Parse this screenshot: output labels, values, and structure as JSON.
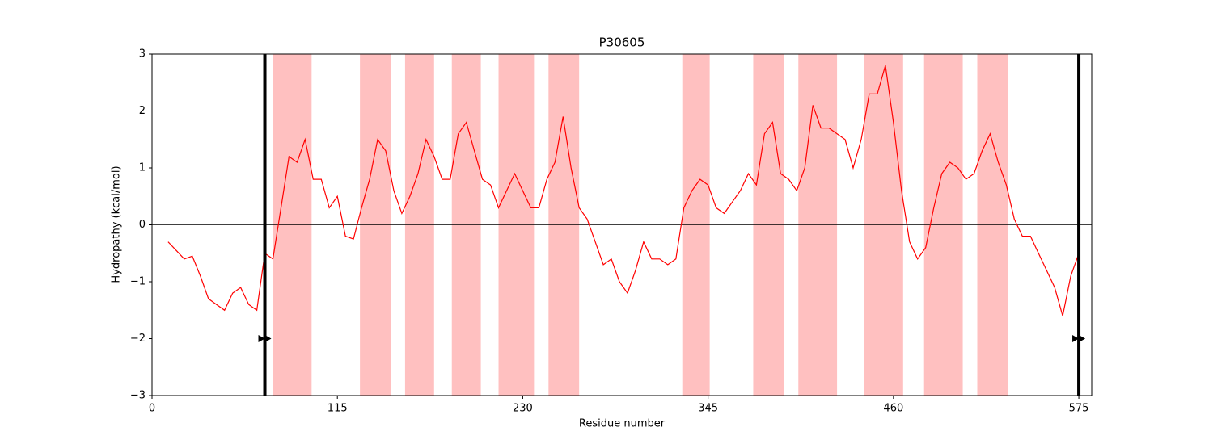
{
  "chart_data": {
    "type": "line",
    "title": "P30605",
    "xlabel": "Residue number",
    "ylabel": "Hydropathy (kcal/mol)",
    "xlim": [
      0,
      583
    ],
    "ylim": [
      -3,
      3
    ],
    "xticks": [
      0,
      115,
      230,
      345,
      460,
      575
    ],
    "yticks": [
      {
        "value": -3,
        "label": "−3"
      },
      {
        "value": -2,
        "label": "−2"
      },
      {
        "value": -1,
        "label": "−1"
      },
      0,
      1,
      2,
      3
    ],
    "hline": 0,
    "spans": [
      [
        75,
        99
      ],
      [
        129,
        148
      ],
      [
        157,
        175
      ],
      [
        186,
        204
      ],
      [
        215,
        237
      ],
      [
        246,
        265
      ],
      [
        329,
        346
      ],
      [
        373,
        392
      ],
      [
        401,
        425
      ],
      [
        442,
        466
      ],
      [
        479,
        503
      ],
      [
        512,
        531
      ]
    ],
    "span_color": "#ffc0c0",
    "vlines": [
      70,
      575
    ],
    "arrows": [
      {
        "x": 70,
        "y": -2
      },
      {
        "x": 575,
        "y": -2
      }
    ],
    "series": [
      {
        "color": "#ff0000",
        "x": [
          10,
          15,
          20,
          25,
          30,
          35,
          40,
          45,
          50,
          55,
          60,
          65,
          70,
          75,
          80,
          85,
          90,
          95,
          100,
          105,
          110,
          115,
          120,
          125,
          130,
          135,
          140,
          145,
          150,
          155,
          160,
          165,
          170,
          175,
          180,
          185,
          190,
          195,
          200,
          205,
          210,
          215,
          220,
          225,
          230,
          235,
          240,
          245,
          250,
          255,
          260,
          265,
          270,
          275,
          280,
          285,
          290,
          295,
          300,
          305,
          310,
          315,
          320,
          325,
          330,
          335,
          340,
          345,
          350,
          355,
          360,
          365,
          370,
          375,
          380,
          385,
          390,
          395,
          400,
          405,
          410,
          415,
          420,
          425,
          430,
          435,
          440,
          445,
          450,
          455,
          460,
          465,
          470,
          475,
          480,
          485,
          490,
          495,
          500,
          505,
          510,
          515,
          520,
          525,
          530,
          535,
          540,
          545,
          550,
          555,
          560,
          565,
          570,
          575
        ],
        "values": [
          -0.3,
          -0.45,
          -0.6,
          -0.55,
          -0.9,
          -1.3,
          -1.4,
          -1.5,
          -1.2,
          -1.1,
          -1.4,
          -1.5,
          -0.5,
          -0.6,
          0.3,
          1.2,
          1.1,
          1.5,
          0.8,
          0.8,
          0.3,
          0.5,
          -0.2,
          -0.25,
          0.3,
          0.8,
          1.5,
          1.3,
          0.6,
          0.2,
          0.5,
          0.9,
          1.5,
          1.2,
          0.8,
          0.8,
          1.6,
          1.8,
          1.3,
          0.8,
          0.7,
          0.3,
          0.6,
          0.9,
          0.6,
          0.3,
          0.3,
          0.8,
          1.1,
          1.9,
          1.0,
          0.3,
          0.1,
          -0.3,
          -0.7,
          -0.6,
          -1.0,
          -1.2,
          -0.8,
          -0.3,
          -0.6,
          -0.6,
          -0.7,
          -0.6,
          0.3,
          0.6,
          0.8,
          0.7,
          0.3,
          0.2,
          0.4,
          0.6,
          0.9,
          0.7,
          1.6,
          1.8,
          0.9,
          0.8,
          0.6,
          1.0,
          2.1,
          1.7,
          1.7,
          1.6,
          1.5,
          1.0,
          1.5,
          2.3,
          2.3,
          2.8,
          1.8,
          0.6,
          -0.3,
          -0.6,
          -0.4,
          0.3,
          0.9,
          1.1,
          1.0,
          0.8,
          0.9,
          1.3,
          1.6,
          1.1,
          0.7,
          0.1,
          -0.2,
          -0.2,
          -0.5,
          -0.8,
          -1.1,
          -1.6,
          -0.9,
          -0.5
        ]
      }
    ]
  }
}
